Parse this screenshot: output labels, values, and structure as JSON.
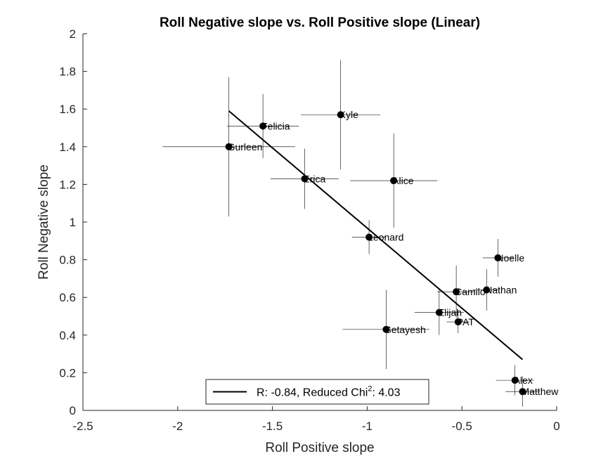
{
  "chart_data": {
    "type": "scatter",
    "title": "Roll Negative slope vs. Roll Positive slope (Linear)",
    "xlabel": "Roll Positive slope",
    "ylabel": "Roll Negative slope",
    "xlim": [
      -2.5,
      0
    ],
    "ylim": [
      0,
      2
    ],
    "x_ticks": [
      "-2.5",
      "-2",
      "-1.5",
      "-1",
      "-0.5",
      "0"
    ],
    "y_ticks": [
      "0",
      "0.2",
      "0.4",
      "0.6",
      "0.8",
      "1",
      "1.2",
      "1.4",
      "1.6",
      "1.8",
      "2"
    ],
    "grid": false,
    "points": [
      {
        "label": "Felicia",
        "x": -1.55,
        "y": 1.51,
        "xerr": 0.19,
        "yerr": 0.17
      },
      {
        "label": "Kyle",
        "x": -1.14,
        "y": 1.57,
        "xerr": 0.21,
        "yerr": 0.29
      },
      {
        "label": "Gurleen",
        "x": -1.73,
        "y": 1.4,
        "xerr": 0.35,
        "yerr": 0.37
      },
      {
        "label": "Erica",
        "x": -1.33,
        "y": 1.23,
        "xerr": 0.18,
        "yerr": 0.16
      },
      {
        "label": "Alice",
        "x": -0.86,
        "y": 1.22,
        "xerr": 0.23,
        "yerr": 0.25
      },
      {
        "label": "Leonard",
        "x": -0.99,
        "y": 0.92,
        "xerr": 0.09,
        "yerr": 0.09
      },
      {
        "label": "Noelle",
        "x": -0.31,
        "y": 0.81,
        "xerr": 0.08,
        "yerr": 0.1
      },
      {
        "label": "Camilo",
        "x": -0.53,
        "y": 0.63,
        "xerr": 0.1,
        "yerr": 0.14
      },
      {
        "label": "Nathan",
        "x": -0.37,
        "y": 0.64,
        "xerr": 0.07,
        "yerr": 0.11
      },
      {
        "label": "Elijah",
        "x": -0.62,
        "y": 0.52,
        "xerr": 0.13,
        "yerr": 0.12
      },
      {
        "label": "PAT",
        "x": -0.52,
        "y": 0.47,
        "xerr": 0.06,
        "yerr": 0.06
      },
      {
        "label": "Setayesh",
        "x": -0.9,
        "y": 0.43,
        "xerr": 0.23,
        "yerr": 0.21
      },
      {
        "label": "Alex",
        "x": -0.22,
        "y": 0.16,
        "xerr": 0.1,
        "yerr": 0.08
      },
      {
        "label": "Matthew",
        "x": -0.18,
        "y": 0.1,
        "xerr": 0.09,
        "yerr": 0.08
      }
    ],
    "fit_line": {
      "x": [
        -1.73,
        -0.18
      ],
      "y": [
        1.59,
        0.27
      ]
    },
    "legend": {
      "label_prefix": "R: -0.84, Reduced Chi",
      "label_sup": "2",
      "label_suffix": ": 4.03",
      "placement": "bottom-center"
    },
    "colors": {
      "marker": "#000000",
      "line": "#000000",
      "axis": "#262626"
    }
  }
}
